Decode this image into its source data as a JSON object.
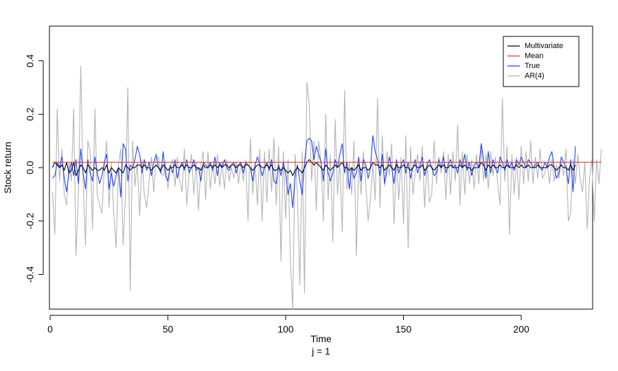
{
  "chart_data": {
    "type": "line",
    "title": "",
    "xlabel": "Time",
    "ylabel": "Stock return",
    "subtitle": "j = 1",
    "xlim": [
      0,
      230
    ],
    "ylim": [
      -0.53,
      0.53
    ],
    "xticks": [
      0,
      50,
      100,
      150,
      200
    ],
    "xtick_labels": [
      "0",
      "50",
      "100",
      "150",
      "200"
    ],
    "yticks": [
      -0.4,
      -0.2,
      0.0,
      0.2,
      0.4
    ],
    "ytick_labels": [
      "-0.4",
      "-0.2",
      "0.0",
      "0.2",
      "0.4"
    ],
    "grid": false,
    "legend_position": "top-right",
    "series": [
      {
        "name": "AR(4)",
        "color": "#b3b3b3",
        "x_start": 1,
        "values": [
          -0.09,
          -0.25,
          0.22,
          -0.05,
          0.07,
          -0.1,
          -0.14,
          0.02,
          -0.05,
          0.22,
          -0.33,
          -0.1,
          0.38,
          -0.05,
          -0.29,
          0.1,
          0.06,
          -0.23,
          0.22,
          -0.1,
          -0.14,
          -0.17,
          0.0,
          0.1,
          -0.15,
          0.02,
          -0.17,
          -0.3,
          0.01,
          0.07,
          -0.29,
          -0.1,
          0.3,
          -0.46,
          0.1,
          -0.07,
          0.02,
          -0.18,
          0.03,
          -0.1,
          -0.15,
          -0.05,
          0.04,
          -0.09,
          0.03,
          0.04,
          -0.02,
          -0.03,
          0.02,
          -0.08,
          0.0,
          0.03,
          -0.07,
          0.04,
          -0.05,
          -0.09,
          0.07,
          -0.14,
          -0.02,
          0.05,
          -0.1,
          0.02,
          -0.16,
          0.01,
          0.06,
          -0.12,
          0.06,
          -0.08,
          0.01,
          -0.06,
          0.05,
          -0.07,
          0.02,
          -0.08,
          0.03,
          -0.05,
          0.0,
          -0.04,
          0.02,
          -0.06,
          0.02,
          -0.05,
          0.03,
          -0.2,
          0.11,
          -0.1,
          0.02,
          -0.14,
          0.07,
          -0.2,
          0.06,
          -0.13,
          0.07,
          -0.09,
          0.11,
          -0.14,
          0.08,
          -0.35,
          0.06,
          -0.19,
          0.03,
          -0.35,
          -0.53,
          0.05,
          -0.1,
          -0.44,
          0.06,
          -0.47,
          0.32,
          0.24,
          -0.05,
          0.1,
          -0.16,
          0.1,
          0.02,
          -0.2,
          0.2,
          -0.12,
          0.05,
          -0.28,
          0.18,
          -0.1,
          0.02,
          -0.24,
          0.29,
          -0.08,
          0.02,
          -0.1,
          0.1,
          -0.33,
          0.02,
          -0.1,
          0.06,
          -0.06,
          -0.2,
          -0.12,
          0.01,
          -0.12,
          0.26,
          -0.15,
          0.12,
          -0.07,
          0.06,
          -0.03,
          0.09,
          -0.21,
          0.03,
          -0.12,
          0.04,
          -0.21,
          0.12,
          -0.3,
          0.08,
          -0.1,
          -0.02,
          0.05,
          -0.05,
          0.08,
          -0.15,
          0.02,
          -0.13,
          -0.1,
          0.1,
          -0.06,
          0.04,
          -0.02,
          0.06,
          -0.12,
          0.05,
          -0.1,
          0.06,
          -0.05,
          0.16,
          -0.14,
          0.06,
          -0.1,
          0.05,
          -0.06,
          0.03,
          -0.08,
          0.05,
          -0.06,
          0.08,
          -0.05,
          0.05,
          -0.08,
          0.06,
          -0.03,
          0.04,
          -0.06,
          -0.14,
          0.26,
          -0.05,
          0.08,
          -0.25,
          0.05,
          -0.1,
          0.04,
          -0.12,
          0.08,
          -0.06,
          0.06,
          -0.05,
          0.1,
          -0.06,
          0.04,
          -0.04,
          0.07,
          -0.04,
          -0.02,
          0.02,
          -0.06,
          0.03,
          -0.05,
          0.01,
          -0.04,
          0.02,
          -0.03,
          0.07,
          -0.2,
          -0.17,
          0.03,
          -0.06,
          0.05,
          -0.04,
          -0.09,
          0.02,
          -0.23,
          -0.04,
          0.03,
          -0.2,
          0.03,
          -0.06,
          0.07
        ]
      },
      {
        "name": "True",
        "color": "#1f3fff",
        "x_start": 1,
        "values": [
          -0.04,
          -0.03,
          0.02,
          0.0,
          0.04,
          -0.04,
          -0.09,
          -0.02,
          0.02,
          -0.03,
          0.03,
          -0.06,
          0.07,
          -0.02,
          -0.08,
          0.03,
          -0.02,
          -0.05,
          0.04,
          -0.02,
          -0.06,
          -0.03,
          0.02,
          0.05,
          -0.08,
          -0.02,
          -0.07,
          -0.03,
          0.0,
          -0.11,
          0.09,
          0.07,
          -0.05,
          0.01,
          0.0,
          0.03,
          0.08,
          0.05,
          -0.02,
          0.03,
          -0.01,
          0.02,
          -0.03,
          0.02,
          0.05,
          0.0,
          -0.02,
          0.06,
          -0.03,
          -0.05,
          0.01,
          -0.02,
          0.03,
          -0.04,
          0.0,
          0.02,
          -0.01,
          0.03,
          -0.02,
          0.0,
          0.03,
          -0.01,
          0.0,
          -0.05,
          0.02,
          0.01,
          0.0,
          0.02,
          -0.01,
          0.04,
          -0.03,
          0.02,
          0.0,
          0.03,
          0.0,
          -0.01,
          0.01,
          0.02,
          -0.02,
          0.01,
          0.02,
          -0.02,
          0.02,
          0.01,
          0.0,
          -0.05,
          0.01,
          0.04,
          0.01,
          -0.03,
          0.0,
          0.02,
          -0.01,
          0.03,
          -0.05,
          -0.06,
          0.01,
          -0.03,
          0.02,
          -0.02,
          -0.1,
          -0.06,
          -0.15,
          -0.03,
          0.01,
          -0.05,
          -0.1,
          0.02,
          0.1,
          0.11,
          0.1,
          0.03,
          0.08,
          0.05,
          0.02,
          -0.05,
          0.07,
          -0.02,
          -0.05,
          -0.02,
          0.03,
          0.0,
          0.05,
          0.09,
          -0.02,
          0.02,
          -0.08,
          0.0,
          -0.04,
          -0.02,
          0.04,
          -0.05,
          0.03,
          0.01,
          -0.04,
          0.0,
          0.12,
          0.06,
          0.03,
          -0.03,
          0.05,
          -0.06,
          -0.01,
          0.04,
          0.0,
          -0.06,
          0.03,
          -0.02,
          0.01,
          0.03,
          -0.02,
          0.02,
          -0.04,
          0.0,
          0.03,
          -0.02,
          0.01,
          0.04,
          -0.03,
          0.01,
          0.03,
          0.0,
          -0.03,
          -0.02,
          0.03,
          0.0,
          0.04,
          -0.02,
          0.01,
          0.03,
          0.0,
          0.01,
          -0.02,
          0.03,
          0.0,
          0.05,
          -0.01,
          0.02,
          -0.03,
          0.01,
          0.02,
          0.0,
          0.09,
          0.03,
          -0.04,
          0.06,
          -0.02,
          0.03,
          0.0,
          -0.02,
          0.04,
          0.02,
          -0.01,
          0.03,
          0.0,
          0.02,
          -0.01,
          0.03,
          0.01,
          0.04,
          0.02,
          0.0,
          0.03,
          0.02,
          0.0,
          0.01,
          0.02,
          0.0,
          -0.01,
          0.02,
          0.0,
          0.04,
          0.06,
          0.0,
          -0.04,
          -0.02,
          0.04,
          0.02,
          0.0,
          -0.06,
          0.03,
          -0.09,
          0.08
        ]
      },
      {
        "name": "Multivariate",
        "color": "#000000",
        "x_start": 1,
        "values": [
          0.0,
          0.02,
          0.01,
          0.0,
          0.01,
          -0.01,
          0.02,
          -0.02,
          -0.01,
          0.02,
          -0.03,
          -0.01,
          0.01,
          0.0,
          -0.02,
          0.01,
          0.0,
          -0.01,
          0.0,
          -0.01,
          -0.01,
          0.0,
          -0.01,
          0.01,
          -0.02,
          0.0,
          -0.01,
          -0.02,
          0.0,
          -0.01,
          -0.02,
          0.01,
          0.0,
          -0.01,
          0.0,
          0.0,
          0.01,
          0.01,
          0.0,
          0.01,
          0.0,
          0.0,
          -0.01,
          0.0,
          0.01,
          0.0,
          -0.01,
          0.01,
          0.0,
          -0.01,
          0.0,
          0.0,
          0.01,
          0.0,
          0.0,
          0.01,
          0.0,
          0.01,
          0.0,
          0.0,
          0.01,
          0.0,
          0.0,
          -0.01,
          0.01,
          0.0,
          0.0,
          0.01,
          0.0,
          0.01,
          0.0,
          0.01,
          0.0,
          0.01,
          0.01,
          0.0,
          0.01,
          0.01,
          0.0,
          0.01,
          0.01,
          0.0,
          0.01,
          0.01,
          0.0,
          -0.01,
          0.0,
          0.01,
          0.01,
          0.0,
          0.0,
          0.01,
          0.0,
          0.01,
          -0.01,
          -0.01,
          0.0,
          -0.01,
          0.0,
          -0.01,
          -0.02,
          -0.01,
          -0.03,
          -0.01,
          0.0,
          -0.01,
          -0.02,
          0.0,
          0.02,
          0.03,
          0.02,
          0.01,
          0.02,
          0.01,
          0.0,
          -0.01,
          0.01,
          0.0,
          -0.01,
          0.0,
          0.01,
          0.0,
          0.01,
          0.02,
          0.0,
          0.0,
          -0.01,
          0.0,
          -0.01,
          0.0,
          0.01,
          -0.01,
          0.0,
          0.0,
          -0.01,
          0.0,
          0.02,
          0.01,
          0.01,
          0.0,
          0.01,
          -0.01,
          0.0,
          0.01,
          0.0,
          -0.01,
          0.01,
          0.0,
          0.0,
          0.01,
          0.0,
          0.0,
          -0.01,
          0.0,
          0.01,
          0.0,
          0.0,
          0.01,
          -0.01,
          0.0,
          0.01,
          0.0,
          -0.01,
          0.0,
          0.01,
          0.0,
          0.01,
          0.0,
          0.0,
          0.01,
          0.0,
          0.0,
          0.0,
          0.01,
          0.0,
          0.01,
          0.0,
          0.0,
          -0.01,
          0.0,
          0.0,
          0.0,
          0.02,
          0.01,
          -0.01,
          0.01,
          0.0,
          0.01,
          0.0,
          0.0,
          0.01,
          0.0,
          0.0,
          0.01,
          0.0,
          0.0,
          0.0,
          0.01,
          0.0,
          0.01,
          0.0,
          0.0,
          0.01,
          0.0,
          0.0,
          0.0,
          0.01,
          0.0,
          0.0,
          0.0,
          0.0,
          0.01,
          0.01,
          0.0,
          -0.01,
          0.0,
          0.01,
          0.0,
          0.0,
          -0.01,
          0.01,
          -0.01,
          0.01
        ]
      },
      {
        "name": "Mean",
        "color": "#e8322f",
        "x_start": 1,
        "values": [
          0.02,
          0.02
        ]
      }
    ],
    "legend_order": [
      "Multivariate",
      "Mean",
      "True",
      "AR(4)"
    ]
  }
}
